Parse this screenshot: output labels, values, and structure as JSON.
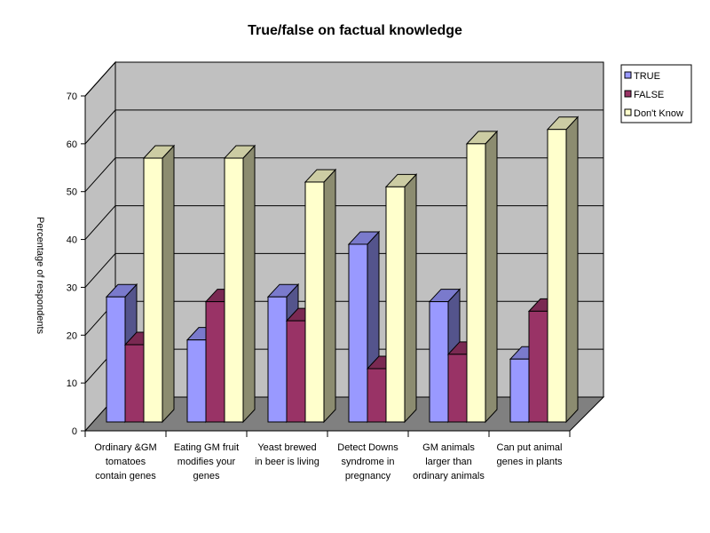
{
  "chart_data": {
    "type": "bar",
    "title": "True/false on factual knowledge",
    "ylabel": "Percentage of respondents",
    "ylim": [
      0,
      70
    ],
    "yticks": [
      0,
      10,
      20,
      30,
      40,
      50,
      60,
      70
    ],
    "grid": true,
    "legend_position": "right",
    "categories": [
      [
        "Ordinary &GM",
        "tomatoes",
        "contain genes"
      ],
      [
        "Eating GM fruit",
        "modifies your",
        "genes"
      ],
      [
        "Yeast brewed",
        "in beer is living"
      ],
      [
        "Detect Downs",
        "syndrome in",
        "pregnancy"
      ],
      [
        "GM animals",
        "larger than",
        "ordinary animals"
      ],
      [
        "Can put animal",
        "genes in plants"
      ]
    ],
    "series": [
      {
        "name": "TRUE",
        "color": "#9999ff",
        "values": [
          28,
          19,
          28,
          39,
          27,
          15
        ]
      },
      {
        "name": "FALSE",
        "color": "#993366",
        "values": [
          18,
          27,
          23,
          13,
          16,
          25
        ]
      },
      {
        "name": "Don't Know",
        "color": "#ffffcc",
        "values": [
          57,
          57,
          52,
          51,
          60,
          63
        ]
      }
    ]
  }
}
